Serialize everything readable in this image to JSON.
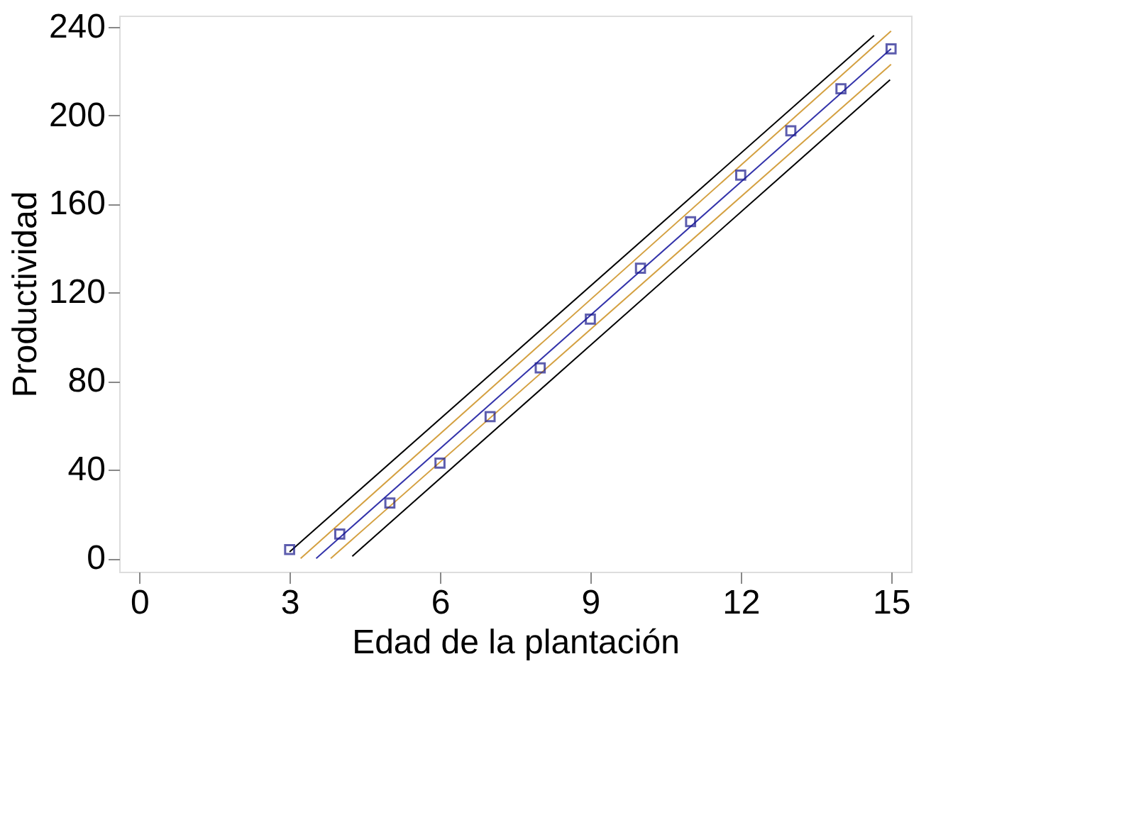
{
  "chart_data": {
    "type": "scatter",
    "xlabel": "Edad de la plantación",
    "ylabel": "Productividad",
    "xlim": [
      -0.4,
      15.4
    ],
    "ylim": [
      -6,
      245
    ],
    "xticks": [
      0,
      3,
      6,
      9,
      12,
      15
    ],
    "yticks": [
      0,
      40,
      80,
      120,
      160,
      200,
      240
    ],
    "grid": false,
    "series": [
      {
        "type": "line",
        "color": "#000000",
        "x": [
          3.0,
          14.66
        ],
        "values": [
          3,
          236
        ]
      },
      {
        "type": "line",
        "color": "#d4a040",
        "x": [
          3.22,
          15
        ],
        "values": [
          0,
          238
        ]
      },
      {
        "type": "line",
        "color": "#3333aa",
        "x": [
          3.53,
          15
        ],
        "values": [
          0,
          230
        ]
      },
      {
        "type": "line",
        "color": "#d4a040",
        "x": [
          3.82,
          15
        ],
        "values": [
          0,
          223
        ]
      },
      {
        "type": "line",
        "color": "#000000",
        "x": [
          4.25,
          14.98
        ],
        "values": [
          1,
          216
        ]
      },
      {
        "color": "#1a1a8c",
        "marker": "square",
        "x": [
          3,
          4,
          5,
          6,
          7,
          8,
          9,
          10,
          11,
          12,
          13,
          14,
          15
        ],
        "values": [
          4,
          11,
          25,
          43,
          64,
          86,
          108,
          131,
          152,
          173,
          193,
          212,
          230
        ]
      }
    ]
  }
}
